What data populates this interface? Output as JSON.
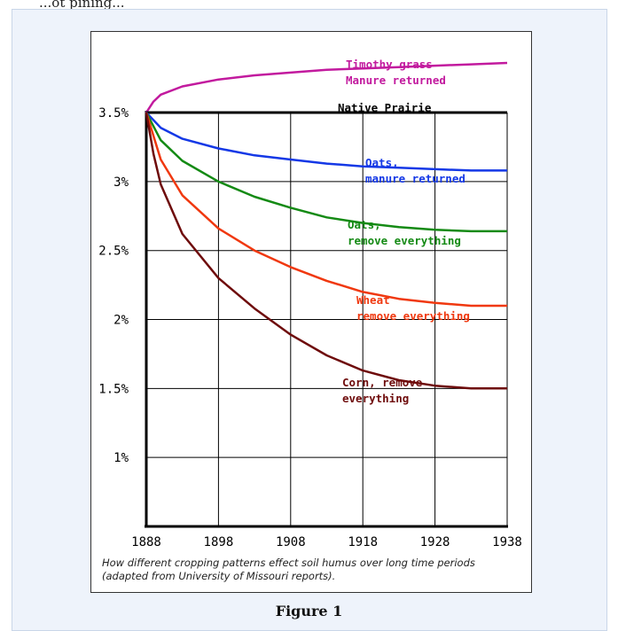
{
  "page": {
    "top_text": "...ot pining...",
    "figure_label": "Figure 1",
    "caption": "How different cropping patterns effect soil humus over long time periods (adapted from University of Missouri reports)."
  },
  "chart_data": {
    "type": "line",
    "title": "",
    "xlabel": "",
    "ylabel": "",
    "xlim": [
      1888,
      1938
    ],
    "ylim": [
      0.5,
      3.95
    ],
    "x_ticks": [
      1888,
      1898,
      1908,
      1918,
      1928,
      1938
    ],
    "x_tick_labels": [
      "1888",
      "1898",
      "1908",
      "1918",
      "1928",
      "1938"
    ],
    "y_ticks": [
      1,
      1.5,
      2,
      2.5,
      3,
      3.5
    ],
    "y_tick_labels": [
      "1%",
      "1.5%",
      "2%",
      "2.5%",
      "3%",
      "3.5%"
    ],
    "grid": true,
    "series": [
      {
        "name": "Timothy grass Manure returned",
        "label_lines": [
          "Timothy grass",
          "Manure returned"
        ],
        "color": "#c21a9e",
        "x": [
          1888,
          1889,
          1890,
          1893,
          1898,
          1903,
          1908,
          1913,
          1918,
          1923,
          1928,
          1933,
          1938
        ],
        "y": [
          3.5,
          3.58,
          3.63,
          3.69,
          3.74,
          3.77,
          3.79,
          3.81,
          3.82,
          3.83,
          3.84,
          3.85,
          3.86
        ]
      },
      {
        "name": "Native Prairie",
        "label_lines": [
          "Native Prairie"
        ],
        "color": "#000000",
        "x": [
          1888,
          1938
        ],
        "y": [
          3.5,
          3.5
        ]
      },
      {
        "name": "Oats, manure returned",
        "label_lines": [
          "Oats,",
          "manure returned"
        ],
        "color": "#1438e6",
        "x": [
          1888,
          1890,
          1893,
          1898,
          1903,
          1908,
          1913,
          1918,
          1923,
          1928,
          1933,
          1938
        ],
        "y": [
          3.5,
          3.39,
          3.31,
          3.24,
          3.19,
          3.16,
          3.13,
          3.11,
          3.1,
          3.09,
          3.08,
          3.08
        ]
      },
      {
        "name": "Oats, remove everything",
        "label_lines": [
          "Oats,",
          "remove everything"
        ],
        "color": "#148a14",
        "x": [
          1888,
          1890,
          1893,
          1898,
          1903,
          1908,
          1913,
          1918,
          1923,
          1928,
          1933,
          1938
        ],
        "y": [
          3.5,
          3.3,
          3.15,
          3.0,
          2.89,
          2.81,
          2.74,
          2.7,
          2.67,
          2.65,
          2.64,
          2.64
        ]
      },
      {
        "name": "Wheat remove everything",
        "label_lines": [
          "Wheat",
          "remove everything"
        ],
        "color": "#f0380f",
        "x": [
          1888,
          1890,
          1893,
          1898,
          1903,
          1908,
          1913,
          1918,
          1923,
          1928,
          1933,
          1938
        ],
        "y": [
          3.5,
          3.16,
          2.9,
          2.66,
          2.5,
          2.38,
          2.28,
          2.2,
          2.15,
          2.12,
          2.1,
          2.1
        ]
      },
      {
        "name": "Corn, remove everything",
        "label_lines": [
          "Corn, remove",
          "everything"
        ],
        "color": "#6e0b0b",
        "x": [
          1888,
          1889,
          1890,
          1893,
          1898,
          1903,
          1908,
          1913,
          1918,
          1923,
          1928,
          1933,
          1938
        ],
        "y": [
          3.5,
          3.2,
          2.98,
          2.62,
          2.3,
          2.08,
          1.89,
          1.74,
          1.63,
          1.56,
          1.52,
          1.5,
          1.5
        ]
      }
    ]
  }
}
